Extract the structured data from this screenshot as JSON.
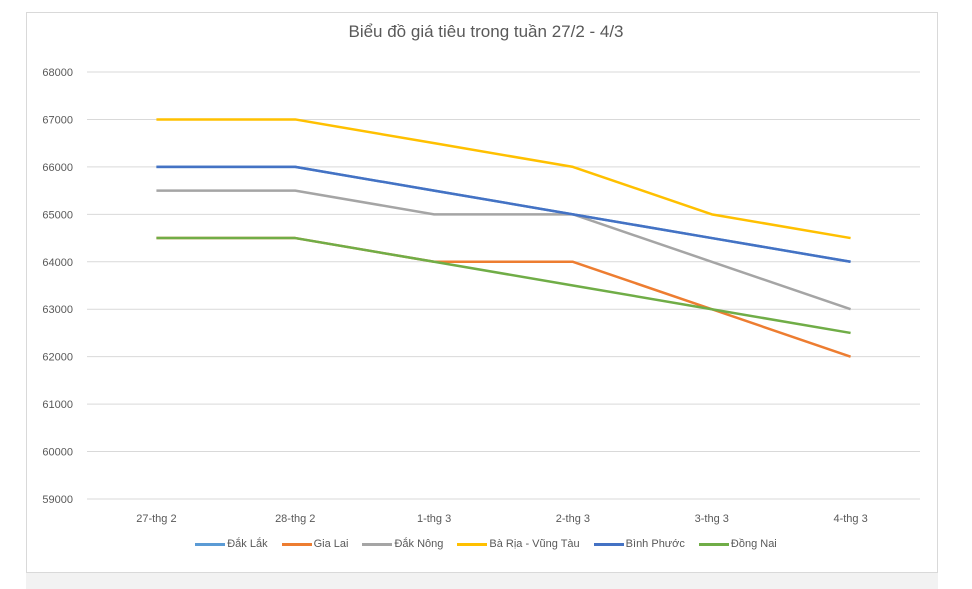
{
  "chart_data": {
    "type": "line",
    "title": "Biểu đồ giá tiêu trong tuần 27/2 - 4/3",
    "xlabel": "",
    "ylabel": "",
    "categories": [
      "27-thg 2",
      "28-thg 2",
      "1-thg 3",
      "2-thg 3",
      "3-thg 3",
      "4-thg 3"
    ],
    "ylim": [
      59000,
      68000
    ],
    "yticks": [
      68000,
      67000,
      66000,
      65000,
      64000,
      63000,
      62000,
      61000,
      60000,
      59000
    ],
    "grid": true,
    "legend_position": "bottom",
    "series": [
      {
        "name": "Đắk Lắk",
        "color": "#5B9BD5",
        "values": [
          66000,
          66000,
          65500,
          65000,
          64500,
          64000
        ]
      },
      {
        "name": "Gia Lai",
        "color": "#ED7D31",
        "values": [
          64500,
          64500,
          64000,
          64000,
          63000,
          62000
        ]
      },
      {
        "name": "Đắk Nông",
        "color": "#A5A5A5",
        "values": [
          65500,
          65500,
          65000,
          65000,
          64000,
          63000
        ]
      },
      {
        "name": "Bà Rịa - Vũng Tàu",
        "color": "#FFC000",
        "values": [
          67000,
          67000,
          66500,
          66000,
          65000,
          64500
        ]
      },
      {
        "name": "Bình Phước",
        "color": "#4472C4",
        "values": [
          66000,
          66000,
          65500,
          65000,
          64500,
          64000
        ]
      },
      {
        "name": "Đồng Nai",
        "color": "#70AD47",
        "values": [
          64500,
          64500,
          64000,
          63500,
          63000,
          62500
        ]
      }
    ]
  }
}
